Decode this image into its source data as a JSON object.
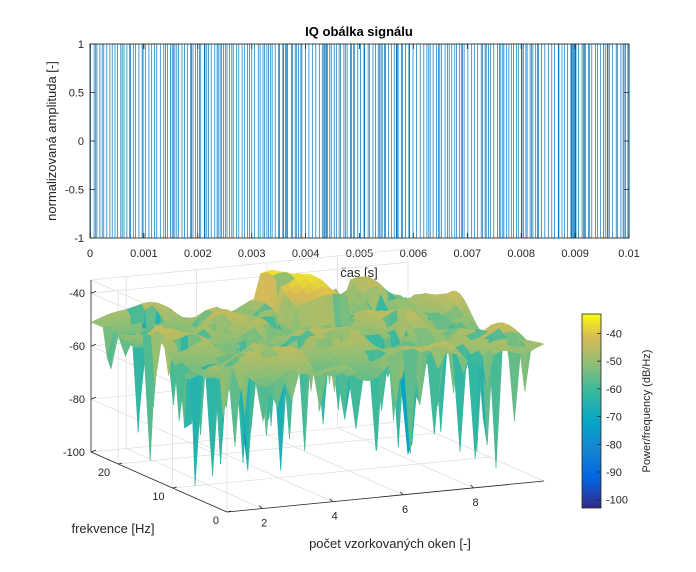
{
  "colors": {
    "signal": "#0072BD",
    "axis": "#262626",
    "grid": "#dcdcdc",
    "background": "#ffffff"
  },
  "colormap": "parula",
  "chart_data": [
    {
      "type": "line",
      "title": "IQ obálka signálu",
      "xlabel": "čas [s]",
      "ylabel": "normalizovaná amplituda [-]",
      "xlim": [
        0,
        0.01
      ],
      "ylim": [
        -1,
        1
      ],
      "xticks": [
        "0",
        "0.001",
        "0.002",
        "0.003",
        "0.004",
        "0.005",
        "0.006",
        "0.007",
        "0.008",
        "0.009",
        "0.01"
      ],
      "yticks": [
        "-1",
        "-0.5",
        "0",
        "0.5",
        "1"
      ],
      "grid": false,
      "series": [
        {
          "description": "binary-like envelope switching between +1 and -1",
          "levels": [
            -1,
            1
          ]
        }
      ]
    },
    {
      "type": "heatmap",
      "style": "3d-surface",
      "xlabel": "počet vzorkovaných oken [-]",
      "ylabel": "frekvence [Hz]",
      "zlim": [
        -100,
        -35
      ],
      "xlim": [
        1,
        10
      ],
      "ylim": [
        0,
        25
      ],
      "xticks": [
        "2",
        "4",
        "6",
        "8"
      ],
      "yticks": [
        "0",
        "10",
        "20"
      ],
      "zticks": [
        "-100",
        "-80",
        "-60",
        "-40"
      ],
      "grid": true,
      "colorbar": {
        "label": "Power/frequency (dB/Hz)",
        "ticks": [
          "-40",
          "-50",
          "-60",
          "-70",
          "-80",
          "-90",
          "-100"
        ],
        "range": [
          -103,
          -33
        ],
        "placement": "right"
      }
    }
  ]
}
